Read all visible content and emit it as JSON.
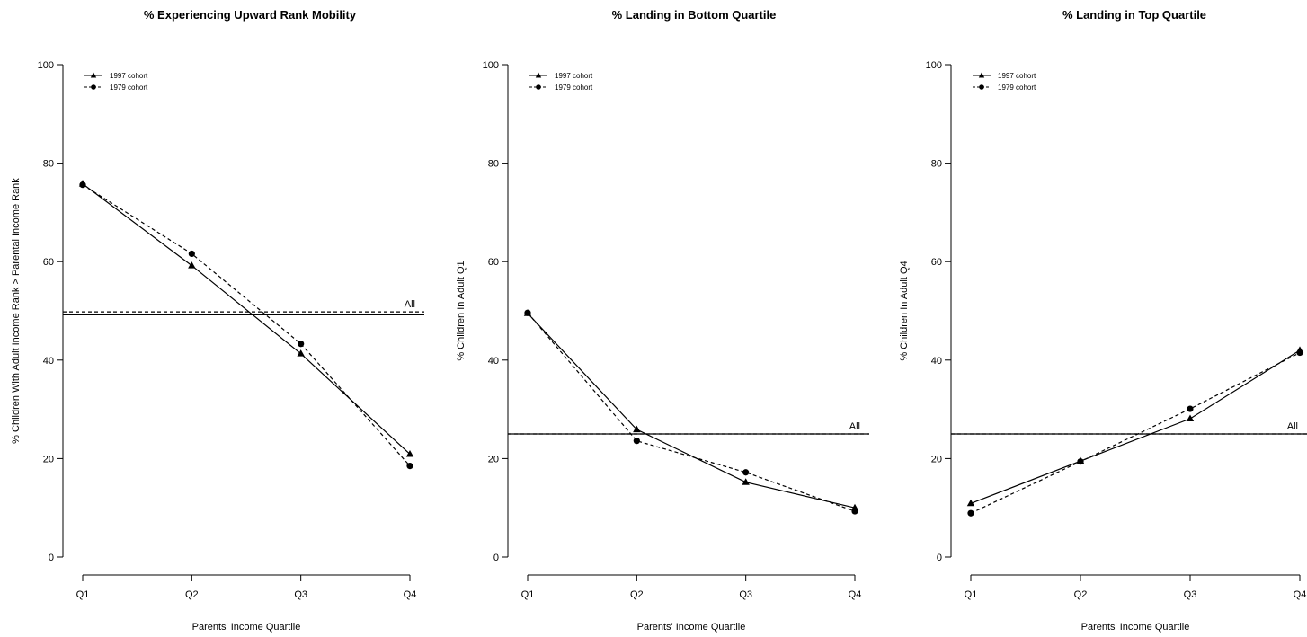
{
  "chart_data": [
    {
      "type": "line",
      "title": "% Experiencing Upward Rank Mobility",
      "xlabel": "Parents' Income Quartile",
      "ylabel": "% Children With Adult Income Rank > Parental Income Rank",
      "categories": [
        "Q1",
        "Q2",
        "Q3",
        "Q4"
      ],
      "ylim": [
        0,
        100
      ],
      "yticks": [
        "0",
        "20",
        "40",
        "60",
        "80",
        "100"
      ],
      "grid": false,
      "legend_position": "top-left",
      "series": [
        {
          "name": "1997 cohort",
          "values": [
            75.8,
            59.2,
            41.3,
            20.9
          ],
          "marker": "triangle",
          "line": "solid",
          "all_level": 49.2
        },
        {
          "name": "1979 cohort",
          "values": [
            75.6,
            61.6,
            43.3,
            18.5
          ],
          "marker": "circle",
          "line": "dashed",
          "all_level": 49.8
        }
      ],
      "reference_label": "All"
    },
    {
      "type": "line",
      "title": "% Landing in Bottom Quartile",
      "xlabel": "Parents' Income Quartile",
      "ylabel": "% Children In Adult Q1",
      "categories": [
        "Q1",
        "Q2",
        "Q3",
        "Q4"
      ],
      "ylim": [
        0,
        100
      ],
      "yticks": [
        "0",
        "20",
        "40",
        "60",
        "80",
        "100"
      ],
      "grid": false,
      "legend_position": "top-left",
      "series": [
        {
          "name": "1997 cohort",
          "values": [
            49.5,
            25.9,
            15.2,
            10.0
          ],
          "marker": "triangle",
          "line": "solid",
          "all_level": 25.0
        },
        {
          "name": "1979 cohort",
          "values": [
            49.6,
            23.6,
            17.2,
            9.3
          ],
          "marker": "circle",
          "line": "dashed",
          "all_level": 25.0
        }
      ],
      "reference_label": "All"
    },
    {
      "type": "line",
      "title": "% Landing in Top Quartile",
      "xlabel": "Parents' Income Quartile",
      "ylabel": "% Children In Adult Q4",
      "categories": [
        "Q1",
        "Q2",
        "Q3",
        "Q4"
      ],
      "ylim": [
        0,
        100
      ],
      "yticks": [
        "0",
        "20",
        "40",
        "60",
        "80",
        "100"
      ],
      "grid": false,
      "legend_position": "top-left",
      "series": [
        {
          "name": "1997 cohort",
          "values": [
            10.9,
            19.5,
            28.1,
            42.0
          ],
          "marker": "triangle",
          "line": "solid",
          "all_level": 25.0
        },
        {
          "name": "1979 cohort",
          "values": [
            8.9,
            19.4,
            30.1,
            41.5
          ],
          "marker": "circle",
          "line": "dashed",
          "all_level": 25.0
        }
      ],
      "reference_label": "All"
    }
  ]
}
